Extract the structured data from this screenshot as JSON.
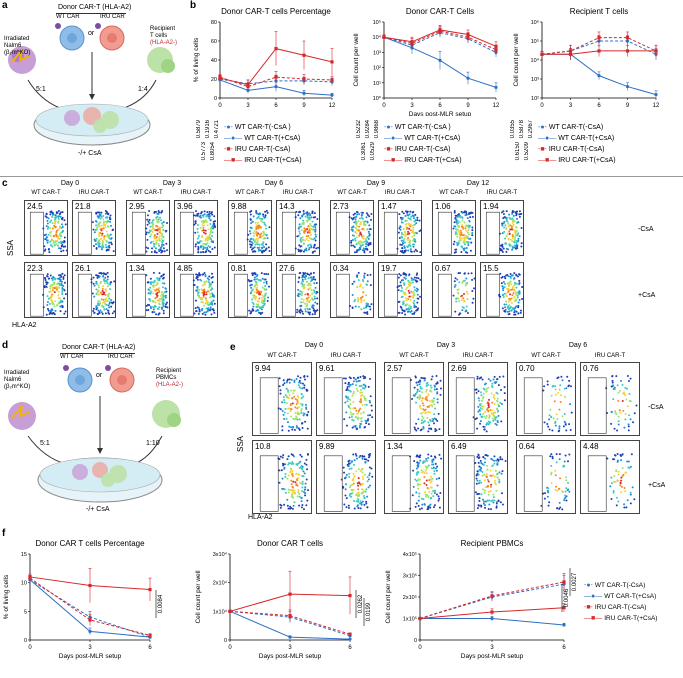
{
  "panel_labels": [
    "a",
    "b",
    "c",
    "d",
    "e",
    "f"
  ],
  "panel_a": {
    "donor_title": "Donor CAR-T (HLA-A2)",
    "donor_hla": "HLA-A2",
    "wt_car": "WT CAR",
    "iru_car": "IRU CAR",
    "or": "or",
    "irradiated": "Irradiated",
    "nalm6": "Nalm6",
    "b2m": "(β₂m^KO)",
    "recipient": "Recipient",
    "t_cells": "T cells",
    "recipient_hla": "(HLA-A2-)",
    "ratio_left": "5:1",
    "ratio_right": "1:4",
    "csa": "-/+ CsA"
  },
  "panel_d": {
    "donor_title": "Donor CAR-T (HLA-A2)",
    "wt_car": "WT CAR",
    "iru_car": "IRU CAR",
    "or": "or",
    "irradiated": "Irradiated",
    "nalm6": "Nalm6",
    "b2m": "(β₂m^KO)",
    "recipient": "Recipient",
    "pbmcs": "PBMCs",
    "recipient_hla": "(HLA-A2-)",
    "ratio_left": "5:1",
    "ratio_right": "1:10",
    "csa": "-/+ CsA"
  },
  "panel_c": {
    "days": [
      "Day 0",
      "Day 3",
      "Day 6",
      "Day 9",
      "Day 12"
    ],
    "sub_labels": [
      "WT CAR-T",
      "IRU CAR-T"
    ],
    "row_labels": [
      "-CsA",
      "+CsA"
    ],
    "y_axis": "SSA",
    "x_axis": "HLA-A2",
    "values_minus": [
      "24.5",
      "21.8",
      "2.95",
      "3.96",
      "9.88",
      "14.3",
      "2.73",
      "1.47",
      "1.06",
      "1.94"
    ],
    "values_plus": [
      "22.3",
      "26.1",
      "1.34",
      "4.85",
      "0.81",
      "27.6",
      "0.34",
      "19.7",
      "0.67",
      "15.5"
    ]
  },
  "panel_e": {
    "days": [
      "Day 0",
      "Day 3",
      "Day 6"
    ],
    "sub_labels": [
      "WT CAR-T",
      "IRU CAR-T"
    ],
    "row_labels": [
      "-CsA",
      "+CsA"
    ],
    "y_axis": "SSA",
    "x_axis": "HLA-A2",
    "values_minus": [
      "9.94",
      "9.61",
      "2.57",
      "2.69",
      "0.70",
      "0.76"
    ],
    "values_plus": [
      "10.8",
      "9.89",
      "1.34",
      "6.49",
      "0.64",
      "4.48"
    ]
  },
  "legend_b": [
    "WT CAR-T(-CsA )",
    "WT CAR-T(+CsA)",
    "IRU CAR-T(-CsA)",
    "IRU CAR-T(+CsA)"
  ],
  "legend_b2": [
    "WT CAR-T(-CsA)",
    "WT CAR-T(+CsA)",
    "IRU CAR-T(-CsA)",
    "IRU CAR-T(+CsA)"
  ],
  "legend_f": [
    "WT CAR-T(-CsA)",
    "WT CAR-T(+CsA)",
    "IRU CAR-T(-CsA)",
    "IRU CAR-T(+CsA)"
  ],
  "pvals_b1": [
    "0.5879",
    "0.5773",
    "0.1916",
    "0.8054",
    "0.4721"
  ],
  "pvals_b2": [
    "0.5232",
    "0.3061",
    "0.9284",
    "0.0529",
    "0.9868"
  ],
  "pvals_b3": [
    "0.0355",
    "0.6150",
    "0.5878",
    "0.5209",
    "0.2967"
  ],
  "colors": {
    "wt": "#2f6fc4",
    "iru": "#d6282b"
  },
  "chart_data": [
    {
      "id": "b1",
      "type": "line",
      "title": "Donor CAR-T cells Percentage",
      "xlabel": "",
      "ylabel": "% of living cells",
      "x": [
        0,
        3,
        6,
        9,
        12
      ],
      "xlim": [
        0,
        12
      ],
      "ylim": [
        0,
        80
      ],
      "xticks": [
        "0",
        "3",
        "6",
        "9",
        "12"
      ],
      "yticks": [
        "0",
        "20",
        "40",
        "60",
        "80"
      ],
      "log": false,
      "series": [
        {
          "name": "WT CAR-T(-CsA )",
          "values": [
            20,
            15,
            18,
            18,
            17
          ],
          "err": [
            3,
            4,
            6,
            4,
            4
          ]
        },
        {
          "name": "WT CAR-T(+CsA)",
          "values": [
            19,
            8,
            12,
            5,
            3
          ],
          "err": [
            3,
            3,
            5,
            3,
            2
          ]
        },
        {
          "name": "IRU CAR-T(-CsA)",
          "values": [
            22,
            12,
            22,
            20,
            19
          ],
          "err": [
            3,
            4,
            6,
            5,
            4
          ]
        },
        {
          "name": "IRU CAR-T(+CsA)",
          "values": [
            21,
            14,
            52,
            45,
            38
          ],
          "err": [
            3,
            5,
            18,
            15,
            14
          ]
        }
      ]
    },
    {
      "id": "b2",
      "type": "line",
      "title": "Donor CAR-T Cells",
      "xlabel": "Days post-MLR setup",
      "ylabel": "Cell count per well",
      "x": [
        0,
        3,
        6,
        9,
        12
      ],
      "xlim": [
        0,
        12
      ],
      "log": true,
      "ylim_exp": [
        0,
        5
      ],
      "xticks": [
        "0",
        "3",
        "6",
        "9",
        "12"
      ],
      "yticks": [
        "10⁰",
        "10¹",
        "10²",
        "10³",
        "10⁴",
        "10⁵"
      ],
      "series": [
        {
          "name": "WT CAR-T(-CsA )",
          "values": [
            10000,
            3000,
            20000,
            8000,
            1000
          ],
          "err": [
            0.15,
            0.3,
            0.3,
            0.3,
            0.3
          ]
        },
        {
          "name": "WT CAR-T(+CsA)",
          "values": [
            10000,
            2000,
            300,
            20,
            5
          ],
          "err": [
            0.15,
            0.4,
            0.6,
            0.4,
            0.3
          ]
        },
        {
          "name": "IRU CAR-T(-CsA)",
          "values": [
            10000,
            4000,
            25000,
            10000,
            1500
          ],
          "err": [
            0.15,
            0.3,
            0.3,
            0.3,
            0.3
          ]
        },
        {
          "name": "IRU CAR-T(+CsA)",
          "values": [
            10000,
            5000,
            30000,
            15000,
            2500
          ],
          "err": [
            0.15,
            0.3,
            0.3,
            0.3,
            0.3
          ]
        }
      ]
    },
    {
      "id": "b3",
      "type": "line",
      "title": "Recipient T cells",
      "xlabel": "",
      "ylabel": "Cell count per well",
      "x": [
        0,
        3,
        6,
        9,
        12
      ],
      "xlim": [
        0,
        12
      ],
      "log": true,
      "ylim_exp": [
        2,
        6
      ],
      "xticks": [
        "0",
        "3",
        "6",
        "9",
        "12"
      ],
      "yticks": [
        "10²",
        "10³",
        "10⁴",
        "10⁵",
        "10⁶"
      ],
      "series": [
        {
          "name": "WT CAR-T(-CsA)",
          "values": [
            20000,
            30000,
            100000,
            100000,
            20000
          ],
          "err": [
            0.15,
            0.3,
            0.3,
            0.3,
            0.3
          ]
        },
        {
          "name": "WT CAR-T(+CsA)",
          "values": [
            20000,
            20000,
            1500,
            400,
            150
          ],
          "err": [
            0.15,
            0.3,
            0.2,
            0.2,
            0.2
          ]
        },
        {
          "name": "IRU CAR-T(-CsA)",
          "values": [
            20000,
            30000,
            150000,
            150000,
            30000
          ],
          "err": [
            0.15,
            0.3,
            0.3,
            0.3,
            0.3
          ]
        },
        {
          "name": "IRU CAR-T(+CsA)",
          "values": [
            20000,
            20000,
            30000,
            30000,
            30000
          ],
          "err": [
            0.15,
            0.3,
            0.3,
            0.3,
            0.3
          ]
        }
      ]
    },
    {
      "id": "f1",
      "type": "line",
      "title": "Donor CAR T cells Percentage",
      "xlabel": "Days post-MLR setup",
      "ylabel": "% of living cells",
      "x": [
        0,
        3,
        6
      ],
      "xlim": [
        0,
        6
      ],
      "ylim": [
        0,
        15
      ],
      "log": false,
      "xticks": [
        "0",
        "3",
        "6"
      ],
      "yticks": [
        "0",
        "5",
        "10",
        "15"
      ],
      "pval": "0.0084",
      "series": [
        {
          "name": "WT CAR-T(-CsA)",
          "values": [
            10.5,
            4,
            0.5
          ],
          "err": [
            0.5,
            1,
            0.3
          ]
        },
        {
          "name": "WT CAR-T(+CsA)",
          "values": [
            10.5,
            1.5,
            0.5
          ],
          "err": [
            0.5,
            0.6,
            0.3
          ]
        },
        {
          "name": "IRU CAR-T(-CsA)",
          "values": [
            10.8,
            3.5,
            0.8
          ],
          "err": [
            0.5,
            1,
            0.3
          ]
        },
        {
          "name": "IRU CAR-T(+CsA)",
          "values": [
            11,
            9.5,
            8.8
          ],
          "err": [
            0.5,
            3,
            2
          ]
        }
      ]
    },
    {
      "id": "f2",
      "type": "line",
      "title": "Donor CAR T cells",
      "xlabel": "Days post-MLR setup",
      "ylabel": "Cell count per well",
      "x": [
        0,
        3,
        6
      ],
      "xlim": [
        0,
        6
      ],
      "ylim": [
        0,
        30000
      ],
      "log": false,
      "xticks": [
        "0",
        "3",
        "6"
      ],
      "yticks": [
        "0",
        "1x10⁴",
        "2x10⁴",
        "3x10⁴"
      ],
      "pvals": [
        "0.0262",
        "0.0199"
      ],
      "series": [
        {
          "name": "WT CAR-T(-CsA)",
          "values": [
            10000,
            8000,
            1500
          ],
          "err": [
            300,
            2000,
            500
          ]
        },
        {
          "name": "WT CAR-T(+CsA)",
          "values": [
            10000,
            1000,
            300
          ],
          "err": [
            300,
            500,
            200
          ]
        },
        {
          "name": "IRU CAR-T(-CsA)",
          "values": [
            10000,
            8500,
            2000
          ],
          "err": [
            300,
            2000,
            500
          ]
        },
        {
          "name": "IRU CAR-T(+CsA)",
          "values": [
            10000,
            16000,
            15500
          ],
          "err": [
            300,
            8000,
            6500
          ]
        }
      ]
    },
    {
      "id": "f3",
      "type": "line",
      "title": "Recipient PBMCs",
      "xlabel": "Days post-MLR setup",
      "ylabel": "Cell count per well",
      "x": [
        0,
        3,
        6
      ],
      "xlim": [
        0,
        6
      ],
      "ylim": [
        0,
        400000
      ],
      "log": false,
      "xticks": [
        "0",
        "3",
        "6"
      ],
      "yticks": [
        "0",
        "1x10⁵",
        "2x10⁵",
        "3x10⁵",
        "4x10⁵"
      ],
      "pvals": [
        "0.0027",
        "0.0046"
      ],
      "series": [
        {
          "name": "WT CAR-T(-CsA)",
          "values": [
            100000,
            200000,
            260000
          ],
          "err": [
            5000,
            20000,
            40000
          ]
        },
        {
          "name": "WT CAR-T(+CsA)",
          "values": [
            100000,
            100000,
            70000
          ],
          "err": [
            5000,
            10000,
            8000
          ]
        },
        {
          "name": "IRU CAR-T(-CsA)",
          "values": [
            100000,
            205000,
            270000
          ],
          "err": [
            5000,
            20000,
            40000
          ]
        },
        {
          "name": "IRU CAR-T(+CsA)",
          "values": [
            100000,
            130000,
            150000
          ],
          "err": [
            5000,
            15000,
            20000
          ]
        }
      ]
    }
  ]
}
